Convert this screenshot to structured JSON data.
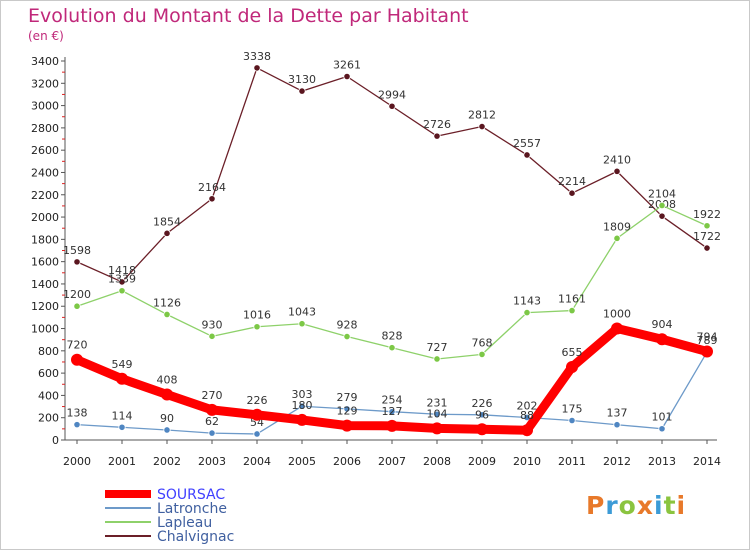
{
  "title": "Evolution du Montant de la Dette par Habitant",
  "subtitle": "(en €)",
  "logo": {
    "text": "Proxiti",
    "colors": [
      "#e8792a",
      "#3c9bd6",
      "#8bc43f",
      "#e8792a",
      "#3c9bd6",
      "#8bc43f",
      "#e8792a"
    ]
  },
  "chart_data": {
    "type": "line",
    "x": [
      "2000",
      "2001",
      "2002",
      "2003",
      "2004",
      "2005",
      "2006",
      "2007",
      "2008",
      "2009",
      "2010",
      "2011",
      "2012",
      "2013",
      "2014"
    ],
    "ylim": [
      0,
      3400
    ],
    "yticks": [
      0,
      200,
      400,
      600,
      800,
      1000,
      1200,
      1400,
      1600,
      1800,
      2000,
      2200,
      2400,
      2600,
      2800,
      3000,
      3200,
      3400
    ],
    "grid": false,
    "legend": "bottom-left",
    "series": [
      {
        "name": "Chalvignac",
        "color": "#6b1f28",
        "marker": "#5a161f",
        "values": [
          1598,
          1418,
          1854,
          2164,
          3338,
          3130,
          3261,
          2994,
          2726,
          2812,
          2557,
          2214,
          2410,
          2008,
          1722
        ]
      },
      {
        "name": "Lapleau",
        "color": "#8ed16a",
        "marker": "#7cc846",
        "values": [
          1200,
          1339,
          1126,
          930,
          1016,
          1043,
          928,
          828,
          727,
          768,
          1143,
          1161,
          1809,
          2104,
          1922
        ]
      },
      {
        "name": "Latronche",
        "color": "#6d9ac9",
        "marker": "#4f86c2",
        "values": [
          138,
          114,
          90,
          62,
          54,
          303,
          279,
          254,
          231,
          226,
          202,
          175,
          137,
          101,
          789
        ]
      },
      {
        "name": "SOURSAC",
        "color": "#ff0000",
        "marker": "#ff0000",
        "values": [
          720,
          549,
          408,
          270,
          226,
          180,
          129,
          127,
          104,
          96,
          88,
          655,
          1000,
          904,
          794
        ]
      }
    ]
  }
}
